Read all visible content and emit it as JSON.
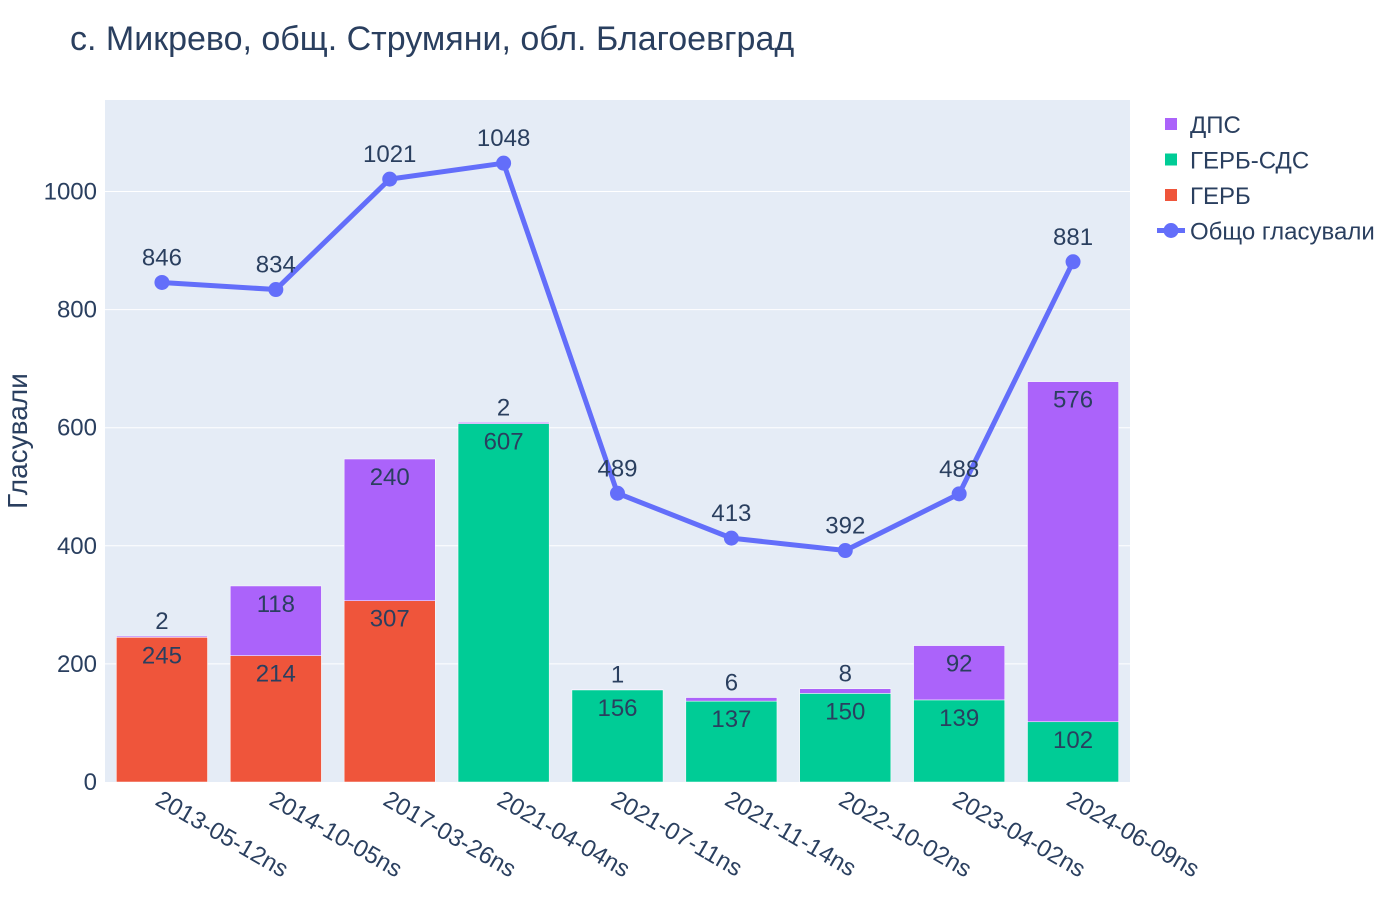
{
  "chart_data": {
    "type": "bar",
    "title": "с. Микрево, общ. Струмяни, обл. Благоевград",
    "xlabel": "",
    "ylabel": "Гласували",
    "ylim": [
      0,
      1155
    ],
    "yticks": [
      0,
      200,
      400,
      600,
      800,
      1000
    ],
    "grid": true,
    "legend_position": "top-right",
    "barmode": "stack",
    "categories": [
      "2013-05-12ns",
      "2014-10-05ns",
      "2017-03-26ns",
      "2021-04-04ns",
      "2021-07-11ns",
      "2021-11-14ns",
      "2022-10-02ns",
      "2023-04-02ns",
      "2024-06-09ns"
    ],
    "series": [
      {
        "name": "ГЕРБ",
        "type": "bar",
        "color": "#EF553B",
        "values": [
          245,
          214,
          307,
          null,
          null,
          null,
          null,
          null,
          null
        ]
      },
      {
        "name": "ГЕРБ-СДС",
        "type": "bar",
        "color": "#00CC96",
        "values": [
          null,
          null,
          null,
          607,
          156,
          137,
          150,
          139,
          102
        ]
      },
      {
        "name": "ДПС",
        "type": "bar",
        "color": "#AB63FA",
        "values": [
          2,
          118,
          240,
          2,
          1,
          6,
          8,
          92,
          576
        ]
      },
      {
        "name": "Общо гласували",
        "type": "line",
        "color": "#636EFA",
        "values": [
          846,
          834,
          1021,
          1048,
          489,
          413,
          392,
          488,
          881
        ]
      }
    ],
    "legend_order": [
      "ДПС",
      "ГЕРБ-СДС",
      "ГЕРБ",
      "Общо гласували"
    ]
  }
}
